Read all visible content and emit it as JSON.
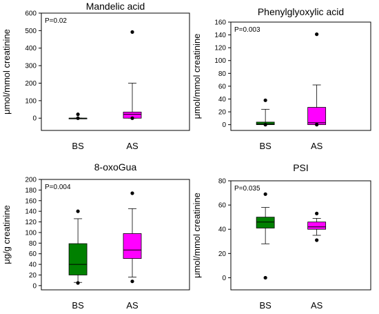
{
  "chart_data": [
    {
      "type": "box",
      "title": "Mandelic acid",
      "ylabel": "μmol/mmol creatinine",
      "annotation": "P=0.02",
      "ylim": [
        -70,
        600
      ],
      "yticks": [
        0,
        100,
        200,
        300,
        400,
        500,
        600
      ],
      "categories": [
        "BS",
        "AS"
      ],
      "boxes": [
        {
          "min": 0,
          "q1": 0,
          "median": 0,
          "q3": 0,
          "max": 0,
          "outliers": [
            22,
            0
          ],
          "color": "#008000"
        },
        {
          "min": 0,
          "q1": 0,
          "median": 22,
          "q3": 35,
          "max": 200,
          "outliers": [
            492,
            0
          ],
          "color": "#ff00ff"
        }
      ]
    },
    {
      "type": "box",
      "title": "Phenylglyoxylic acid",
      "ylabel": "μmol/mmol creatinine",
      "annotation": "P=0.003",
      "ylim": [
        -9,
        160
      ],
      "yticks": [
        0,
        20,
        40,
        60,
        80,
        100,
        120,
        140,
        160
      ],
      "categories": [
        "BS",
        "AS"
      ],
      "boxes": [
        {
          "min": 0,
          "q1": 0,
          "median": 1,
          "q3": 4,
          "max": 24,
          "outliers": [
            38,
            0
          ],
          "color": "#008000"
        },
        {
          "min": 0,
          "q1": 0,
          "median": 3,
          "q3": 27,
          "max": 62,
          "outliers": [
            141,
            0
          ],
          "color": "#ff00ff"
        }
      ]
    },
    {
      "type": "box",
      "title": "8-oxoGua",
      "ylabel": "μg/g creatinine",
      "annotation": "P=0.004",
      "ylim": [
        -8,
        200
      ],
      "yticks": [
        0,
        20,
        40,
        60,
        80,
        100,
        120,
        140,
        160,
        180,
        200
      ],
      "categories": [
        "BS",
        "AS"
      ],
      "boxes": [
        {
          "min": 6,
          "q1": 20,
          "median": 40,
          "q3": 79,
          "max": 126,
          "outliers": [
            140,
            5
          ],
          "color": "#008000"
        },
        {
          "min": 16,
          "q1": 51,
          "median": 67,
          "q3": 98,
          "max": 145,
          "outliers": [
            174,
            8
          ],
          "color": "#ff00ff"
        }
      ]
    },
    {
      "type": "box",
      "title": "PSI",
      "ylabel": "μmol/mmol creatinine",
      "annotation": "P=0.035",
      "ylim": [
        -10,
        80
      ],
      "yticks": [
        0,
        20,
        40,
        60,
        80
      ],
      "categories": [
        "BS",
        "AS"
      ],
      "boxes": [
        {
          "min": 28,
          "q1": 41,
          "median": 46,
          "q3": 50,
          "max": 58,
          "outliers": [
            69,
            0
          ],
          "color": "#008000"
        },
        {
          "min": 35,
          "q1": 40,
          "median": 42,
          "q3": 46,
          "max": 49,
          "outliers": [
            53,
            31
          ],
          "color": "#ff00ff"
        }
      ]
    }
  ]
}
